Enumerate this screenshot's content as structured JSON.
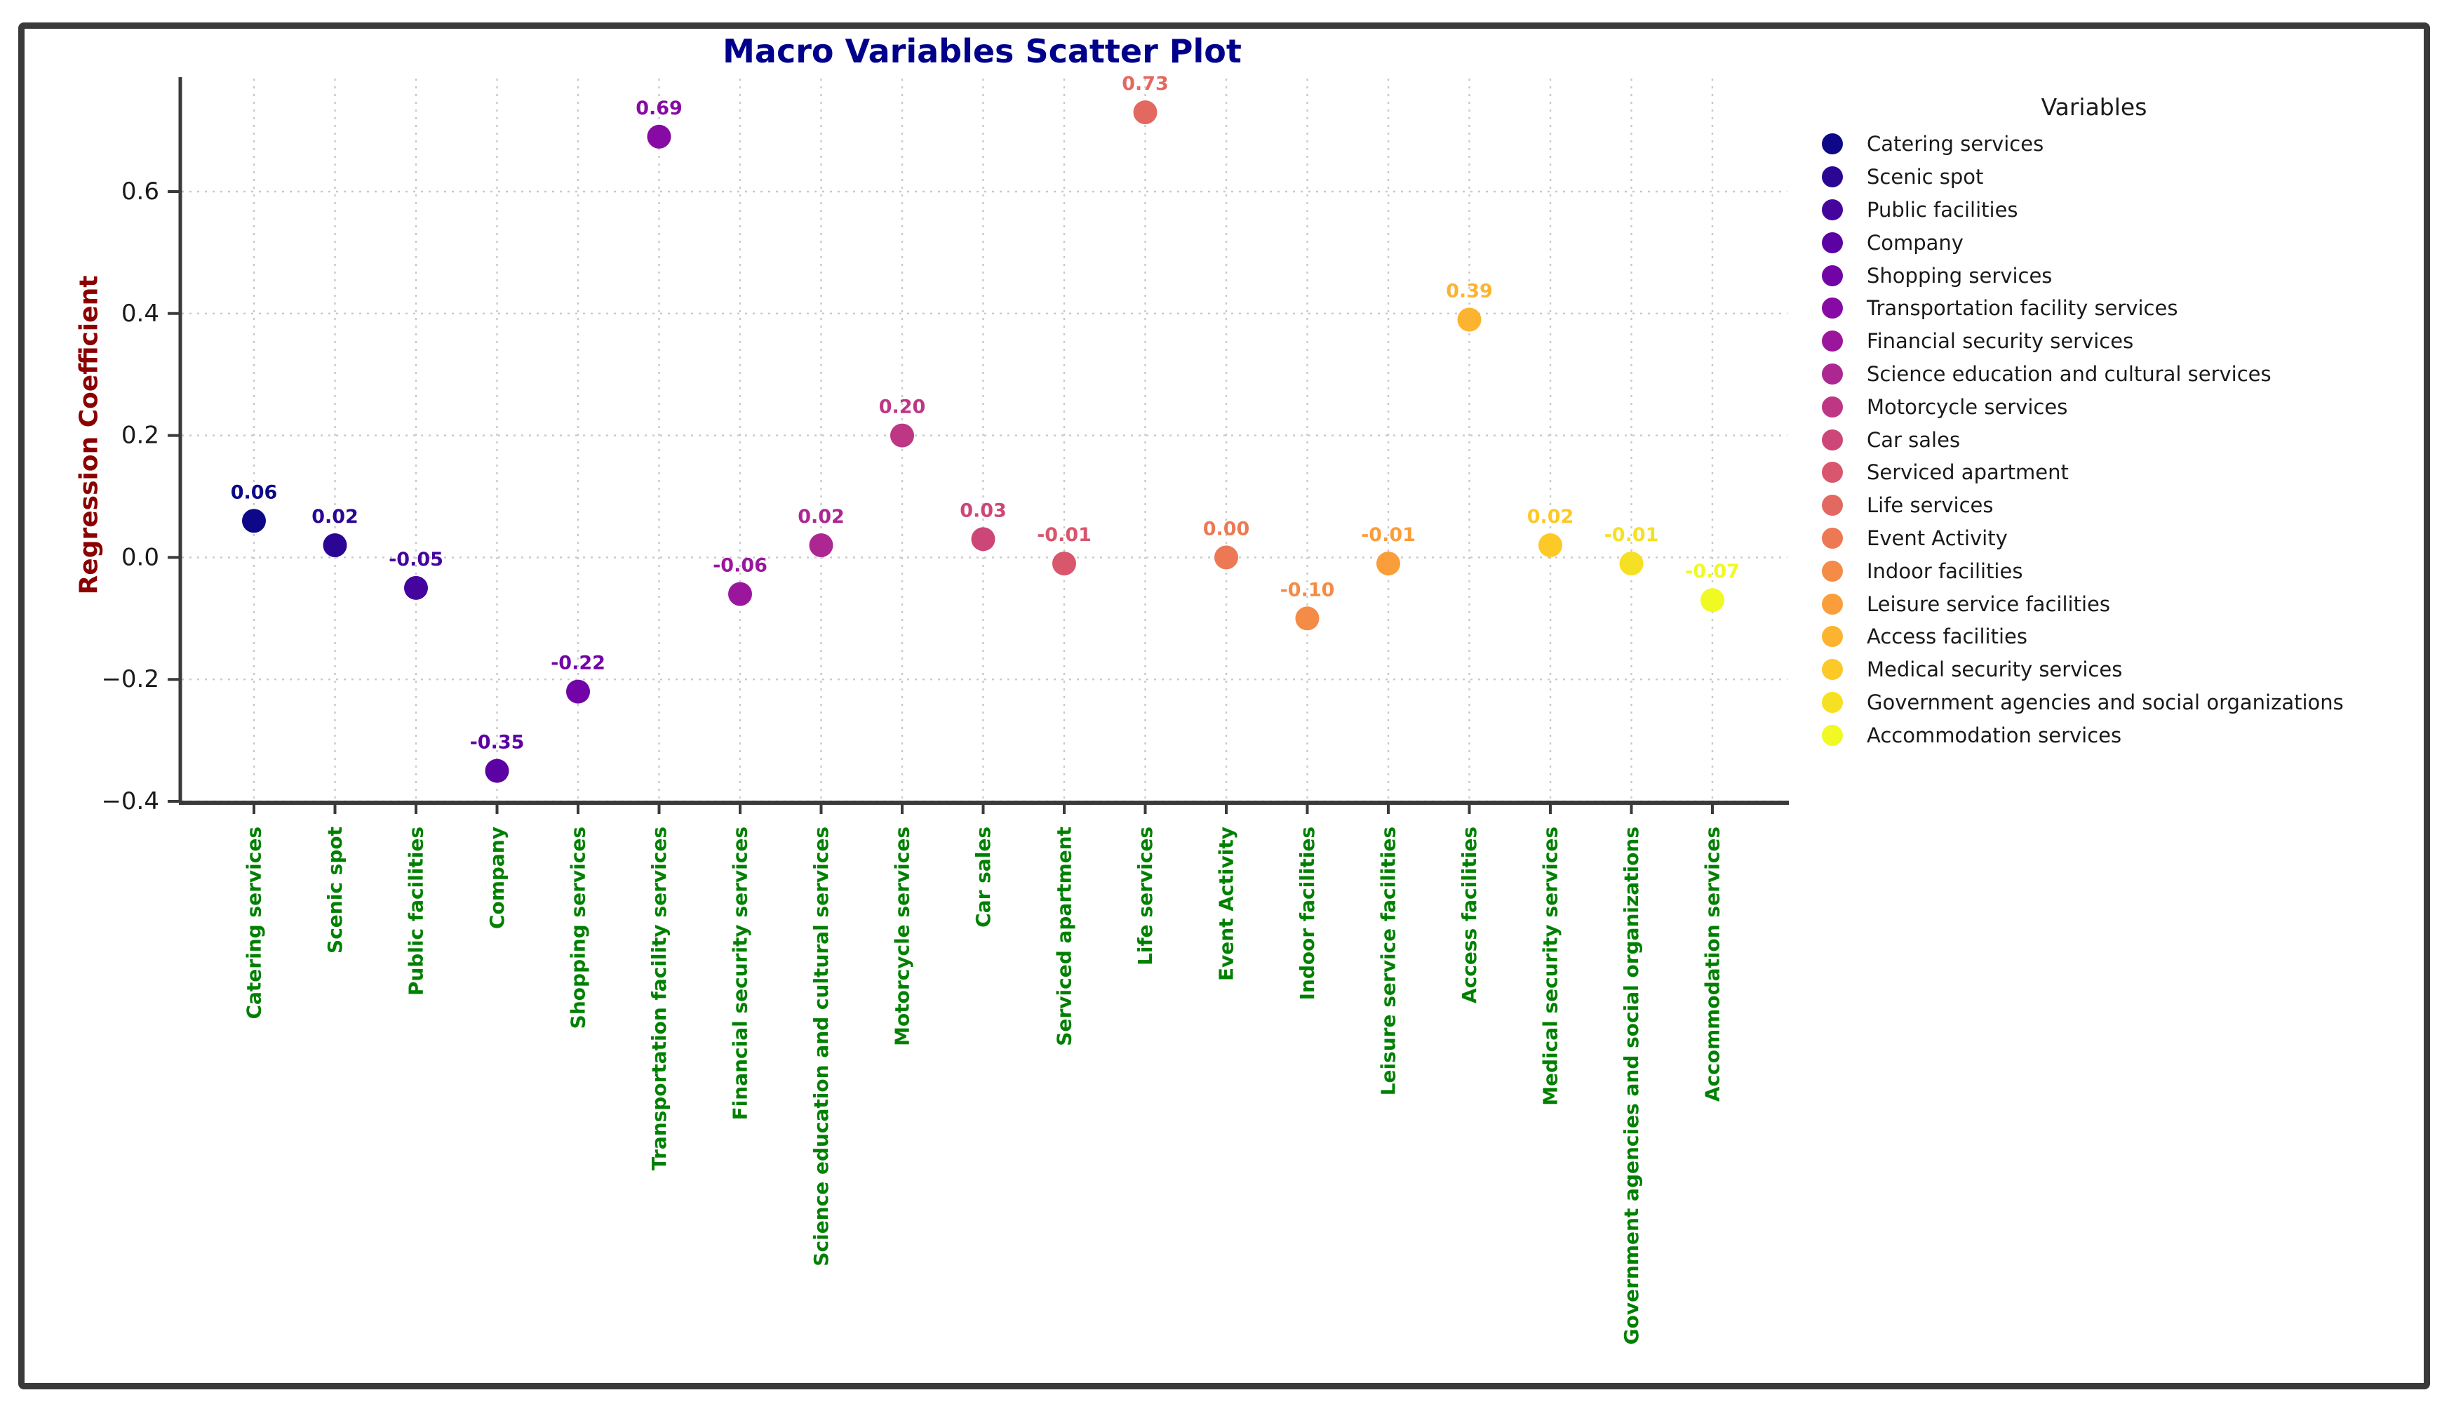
{
  "chart_data": {
    "type": "scatter",
    "title": "Macro Variables Scatter Plot",
    "ylabel": "Regression Coefficient",
    "legend_title": "Variables",
    "categories": [
      "Catering services",
      "Scenic spot",
      "Public facilities",
      "Company",
      "Shopping services",
      "Transportation facility services",
      "Financial security services",
      "Science education and cultural services",
      "Motorcycle services",
      "Car sales",
      "Serviced apartment",
      "Life services",
      "Event Activity",
      "Indoor facilities",
      "Leisure service facilities",
      "Access facilities",
      "Medical security services",
      "Government agencies and social organizations",
      "Accommodation services"
    ],
    "values": [
      0.06,
      0.02,
      -0.05,
      -0.35,
      -0.22,
      0.69,
      -0.06,
      0.02,
      0.2,
      0.03,
      -0.01,
      0.73,
      0.0,
      -0.1,
      -0.01,
      0.39,
      0.02,
      -0.01,
      -0.07
    ],
    "value_labels": [
      "0.06",
      "0.02",
      "-0.05",
      "-0.35",
      "-0.22",
      "0.69",
      "-0.06",
      "0.02",
      "0.20",
      "0.03",
      "-0.01",
      "0.73",
      "0.00",
      "-0.10",
      "-0.01",
      "0.39",
      "0.02",
      "-0.01",
      "-0.07"
    ],
    "point_colors": [
      "#0d0887",
      "#2b0594",
      "#45049e",
      "#5c01a4",
      "#7203a7",
      "#870aa5",
      "#9a179d",
      "#ad2792",
      "#bd3785",
      "#cc4778",
      "#d8576c",
      "#e36860",
      "#ec7953",
      "#f48b46",
      "#fa9e3b",
      "#fcb330",
      "#fcc927",
      "#f6e023",
      "#f0f921"
    ],
    "ytick_labels": [
      "0.6",
      "0.4",
      "0.2",
      "0.0",
      "−0.2",
      "−0.4"
    ],
    "ytick_values": [
      0.6,
      0.4,
      0.2,
      0.0,
      -0.2,
      -0.4
    ],
    "ylim": [
      -0.4,
      0.787
    ],
    "grid": true,
    "legend_position": "right",
    "colors": {
      "title": "#00008b",
      "ylabel": "#8b0000",
      "xtick_text": "#008000",
      "ytick_text": "#1a1a1a",
      "legend_text": "#1a1a1a",
      "axis": "#3a3a3a",
      "grid": "#c9c9c9",
      "background": "#ffffff",
      "frame_border": "#3a3a3a"
    }
  }
}
